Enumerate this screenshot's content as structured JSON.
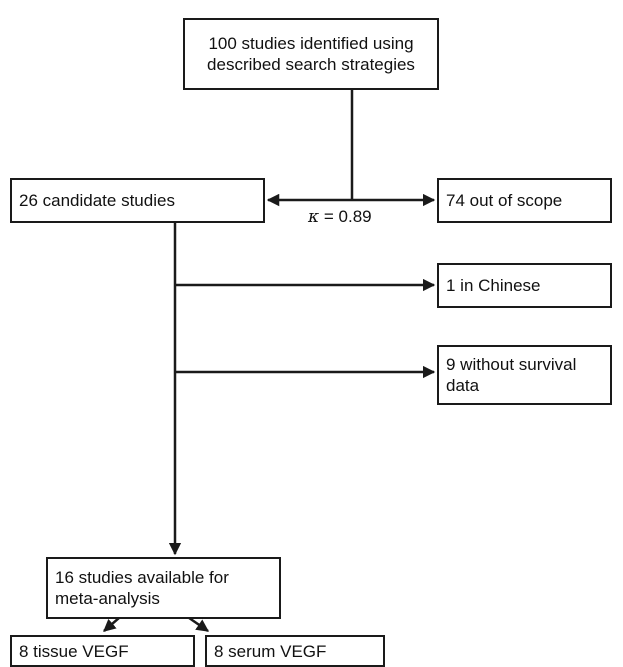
{
  "diagram": {
    "nodes": {
      "identified": "100 studies identified using\ndescribed search strategies",
      "candidates": "26 candidate studies",
      "out_of_scope": "74 out of scope",
      "chinese": "1 in Chinese",
      "no_survival": "9 without survival\ndata",
      "meta_analysis": "16 studies available for\nmeta-analysis",
      "tissue": "8 tissue VEGF",
      "serum": "8 serum VEGF"
    },
    "kappa": {
      "symbol": "κ",
      "value": " = 0.89"
    },
    "edges": [
      {
        "from": "identified",
        "to": "candidates"
      },
      {
        "from": "identified",
        "to": "out_of_scope"
      },
      {
        "from": "candidates",
        "to": "chinese"
      },
      {
        "from": "candidates",
        "to": "no_survival"
      },
      {
        "from": "candidates",
        "to": "meta_analysis"
      },
      {
        "from": "meta_analysis",
        "to": "tissue"
      },
      {
        "from": "meta_analysis",
        "to": "serum"
      }
    ]
  }
}
